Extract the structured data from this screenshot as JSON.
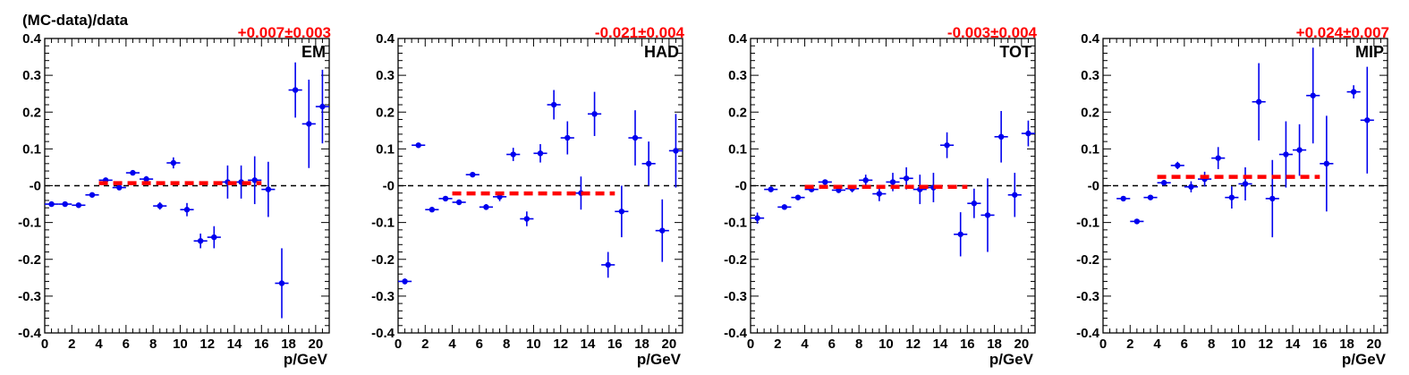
{
  "figure": {
    "ylabel": "(MC-data)/data",
    "xlabel": "p/GeV",
    "fit_color": "#ff0000",
    "point_color": "#0000ee"
  },
  "chart_data": [
    {
      "type": "scatter",
      "panel_label": "EM",
      "fit_text": "+0.007±0.003",
      "fit_value": 0.007,
      "fit_range": [
        4,
        16
      ],
      "xlabel": "p/GeV",
      "ylabel": "(MC-data)/data",
      "xlim": [
        0,
        21
      ],
      "ylim": [
        -0.4,
        0.4
      ],
      "x_ticks": [
        "0",
        "2",
        "4",
        "6",
        "8",
        "10",
        "12",
        "14",
        "16",
        "18",
        "20"
      ],
      "y_ticks": [
        "-0.4",
        "-0.3",
        "-0.2",
        "-0.1",
        "-0",
        "0.1",
        "0.2",
        "0.3",
        "0.4"
      ],
      "reference_line": 0,
      "grid": false,
      "points": [
        {
          "x": 0.5,
          "y": -0.05,
          "xerr": 0.5,
          "yerr": 0.004
        },
        {
          "x": 1.5,
          "y": -0.05,
          "xerr": 0.5,
          "yerr": 0.004
        },
        {
          "x": 2.5,
          "y": -0.053,
          "xerr": 0.5,
          "yerr": 0.004
        },
        {
          "x": 3.5,
          "y": -0.025,
          "xerr": 0.5,
          "yerr": 0.004
        },
        {
          "x": 4.5,
          "y": 0.015,
          "xerr": 0.5,
          "yerr": 0.005
        },
        {
          "x": 5.5,
          "y": -0.005,
          "xerr": 0.5,
          "yerr": 0.006
        },
        {
          "x": 6.5,
          "y": 0.035,
          "xerr": 0.5,
          "yerr": 0.006
        },
        {
          "x": 7.5,
          "y": 0.018,
          "xerr": 0.5,
          "yerr": 0.008
        },
        {
          "x": 8.5,
          "y": -0.055,
          "xerr": 0.5,
          "yerr": 0.01
        },
        {
          "x": 9.5,
          "y": 0.062,
          "xerr": 0.5,
          "yerr": 0.015
        },
        {
          "x": 10.5,
          "y": -0.065,
          "xerr": 0.5,
          "yerr": 0.018
        },
        {
          "x": 11.5,
          "y": -0.15,
          "xerr": 0.5,
          "yerr": 0.02
        },
        {
          "x": 12.5,
          "y": -0.14,
          "xerr": 0.5,
          "yerr": 0.03
        },
        {
          "x": 13.5,
          "y": 0.01,
          "xerr": 0.5,
          "yerr": 0.045
        },
        {
          "x": 14.5,
          "y": 0.01,
          "xerr": 0.5,
          "yerr": 0.045
        },
        {
          "x": 15.5,
          "y": 0.015,
          "xerr": 0.5,
          "yerr": 0.065
        },
        {
          "x": 16.5,
          "y": -0.01,
          "xerr": 0.5,
          "yerr": 0.075
        },
        {
          "x": 17.5,
          "y": -0.265,
          "xerr": 0.5,
          "yerr": 0.095
        },
        {
          "x": 18.5,
          "y": 0.26,
          "xerr": 0.5,
          "yerr": 0.075
        },
        {
          "x": 19.5,
          "y": 0.168,
          "xerr": 0.5,
          "yerr": 0.12
        },
        {
          "x": 20.5,
          "y": 0.215,
          "xerr": 0.5,
          "yerr": 0.1
        }
      ]
    },
    {
      "type": "scatter",
      "panel_label": "HAD",
      "fit_text": "-0.021±0.004",
      "fit_value": -0.021,
      "fit_range": [
        4,
        16
      ],
      "xlabel": "p/GeV",
      "ylabel": "",
      "xlim": [
        0,
        21
      ],
      "ylim": [
        -0.4,
        0.4
      ],
      "x_ticks": [
        "0",
        "2",
        "4",
        "6",
        "8",
        "10",
        "12",
        "14",
        "16",
        "18",
        "20"
      ],
      "y_ticks": [
        "-0.4",
        "-0.3",
        "-0.2",
        "-0.1",
        "-0",
        "0.1",
        "0.2",
        "0.3",
        "0.4"
      ],
      "reference_line": 0,
      "grid": false,
      "points": [
        {
          "x": 0.5,
          "y": -0.26,
          "xerr": 0.5,
          "yerr": 0.008
        },
        {
          "x": 1.5,
          "y": 0.11,
          "xerr": 0.5,
          "yerr": 0.004
        },
        {
          "x": 2.5,
          "y": -0.065,
          "xerr": 0.5,
          "yerr": 0.004
        },
        {
          "x": 3.5,
          "y": -0.035,
          "xerr": 0.5,
          "yerr": 0.004
        },
        {
          "x": 4.5,
          "y": -0.045,
          "xerr": 0.5,
          "yerr": 0.005
        },
        {
          "x": 5.5,
          "y": 0.03,
          "xerr": 0.5,
          "yerr": 0.006
        },
        {
          "x": 6.5,
          "y": -0.058,
          "xerr": 0.5,
          "yerr": 0.008
        },
        {
          "x": 7.5,
          "y": -0.03,
          "xerr": 0.5,
          "yerr": 0.012
        },
        {
          "x": 8.5,
          "y": 0.085,
          "xerr": 0.5,
          "yerr": 0.018
        },
        {
          "x": 9.5,
          "y": -0.09,
          "xerr": 0.5,
          "yerr": 0.02
        },
        {
          "x": 10.5,
          "y": 0.088,
          "xerr": 0.5,
          "yerr": 0.025
        },
        {
          "x": 11.5,
          "y": 0.22,
          "xerr": 0.5,
          "yerr": 0.04
        },
        {
          "x": 12.5,
          "y": 0.13,
          "xerr": 0.5,
          "yerr": 0.045
        },
        {
          "x": 13.5,
          "y": -0.02,
          "xerr": 0.5,
          "yerr": 0.045
        },
        {
          "x": 14.5,
          "y": 0.195,
          "xerr": 0.5,
          "yerr": 0.06
        },
        {
          "x": 15.5,
          "y": -0.215,
          "xerr": 0.5,
          "yerr": 0.035
        },
        {
          "x": 16.5,
          "y": -0.07,
          "xerr": 0.5,
          "yerr": 0.07
        },
        {
          "x": 17.5,
          "y": 0.13,
          "xerr": 0.5,
          "yerr": 0.075
        },
        {
          "x": 18.5,
          "y": 0.06,
          "xerr": 0.5,
          "yerr": 0.06
        },
        {
          "x": 19.5,
          "y": -0.122,
          "xerr": 0.5,
          "yerr": 0.085
        },
        {
          "x": 20.5,
          "y": 0.095,
          "xerr": 0.5,
          "yerr": 0.1
        }
      ]
    },
    {
      "type": "scatter",
      "panel_label": "TOT",
      "fit_text": "-0.003±0.004",
      "fit_value": -0.003,
      "fit_range": [
        4,
        16
      ],
      "xlabel": "p/GeV",
      "ylabel": "",
      "xlim": [
        0,
        21
      ],
      "ylim": [
        -0.4,
        0.4
      ],
      "x_ticks": [
        "0",
        "2",
        "4",
        "6",
        "8",
        "10",
        "12",
        "14",
        "16",
        "18",
        "20"
      ],
      "y_ticks": [
        "-0.4",
        "-0.3",
        "-0.2",
        "-0.1",
        "-0",
        "0.1",
        "0.2",
        "0.3",
        "0.4"
      ],
      "reference_line": 0,
      "grid": false,
      "points": [
        {
          "x": 0.5,
          "y": -0.088,
          "xerr": 0.5,
          "yerr": 0.015
        },
        {
          "x": 1.5,
          "y": -0.01,
          "xerr": 0.5,
          "yerr": 0.006
        },
        {
          "x": 2.5,
          "y": -0.058,
          "xerr": 0.5,
          "yerr": 0.004
        },
        {
          "x": 3.5,
          "y": -0.032,
          "xerr": 0.5,
          "yerr": 0.004
        },
        {
          "x": 4.5,
          "y": -0.01,
          "xerr": 0.5,
          "yerr": 0.005
        },
        {
          "x": 5.5,
          "y": 0.01,
          "xerr": 0.5,
          "yerr": 0.006
        },
        {
          "x": 6.5,
          "y": -0.012,
          "xerr": 0.5,
          "yerr": 0.008
        },
        {
          "x": 7.5,
          "y": -0.008,
          "xerr": 0.5,
          "yerr": 0.01
        },
        {
          "x": 8.5,
          "y": 0.015,
          "xerr": 0.5,
          "yerr": 0.015
        },
        {
          "x": 9.5,
          "y": -0.022,
          "xerr": 0.5,
          "yerr": 0.02
        },
        {
          "x": 10.5,
          "y": 0.01,
          "xerr": 0.5,
          "yerr": 0.025
        },
        {
          "x": 11.5,
          "y": 0.02,
          "xerr": 0.5,
          "yerr": 0.03
        },
        {
          "x": 12.5,
          "y": -0.01,
          "xerr": 0.5,
          "yerr": 0.04
        },
        {
          "x": 13.5,
          "y": -0.005,
          "xerr": 0.5,
          "yerr": 0.04
        },
        {
          "x": 14.5,
          "y": 0.11,
          "xerr": 0.5,
          "yerr": 0.035
        },
        {
          "x": 15.5,
          "y": -0.132,
          "xerr": 0.5,
          "yerr": 0.06
        },
        {
          "x": 16.5,
          "y": -0.048,
          "xerr": 0.5,
          "yerr": 0.04
        },
        {
          "x": 17.5,
          "y": -0.08,
          "xerr": 0.5,
          "yerr": 0.1
        },
        {
          "x": 18.5,
          "y": 0.133,
          "xerr": 0.5,
          "yerr": 0.07
        },
        {
          "x": 19.5,
          "y": -0.025,
          "xerr": 0.5,
          "yerr": 0.06
        },
        {
          "x": 20.5,
          "y": 0.142,
          "xerr": 0.5,
          "yerr": 0.035
        }
      ]
    },
    {
      "type": "scatter",
      "panel_label": "MIP",
      "fit_text": "+0.024±0.007",
      "fit_value": 0.024,
      "fit_range": [
        4,
        16
      ],
      "xlabel": "p/GeV",
      "ylabel": "",
      "xlim": [
        0,
        21
      ],
      "ylim": [
        -0.4,
        0.4
      ],
      "x_ticks": [
        "0",
        "2",
        "4",
        "6",
        "8",
        "10",
        "12",
        "14",
        "16",
        "18",
        "20"
      ],
      "y_ticks": [
        "-0.4",
        "-0.3",
        "-0.2",
        "-0.1",
        "-0",
        "0.1",
        "0.2",
        "0.3",
        "0.4"
      ],
      "reference_line": 0,
      "grid": false,
      "points": [
        {
          "x": 1.5,
          "y": -0.035,
          "xerr": 0.5,
          "yerr": 0.004
        },
        {
          "x": 2.5,
          "y": -0.097,
          "xerr": 0.5,
          "yerr": 0.005
        },
        {
          "x": 3.5,
          "y": -0.032,
          "xerr": 0.5,
          "yerr": 0.004
        },
        {
          "x": 4.5,
          "y": 0.008,
          "xerr": 0.5,
          "yerr": 0.006
        },
        {
          "x": 5.5,
          "y": 0.055,
          "xerr": 0.5,
          "yerr": 0.01
        },
        {
          "x": 6.5,
          "y": -0.003,
          "xerr": 0.5,
          "yerr": 0.015
        },
        {
          "x": 7.5,
          "y": 0.018,
          "xerr": 0.5,
          "yerr": 0.02
        },
        {
          "x": 8.5,
          "y": 0.075,
          "xerr": 0.5,
          "yerr": 0.03
        },
        {
          "x": 9.5,
          "y": -0.032,
          "xerr": 0.5,
          "yerr": 0.03
        },
        {
          "x": 10.5,
          "y": 0.005,
          "xerr": 0.5,
          "yerr": 0.045
        },
        {
          "x": 11.5,
          "y": 0.228,
          "xerr": 0.5,
          "yerr": 0.105
        },
        {
          "x": 12.5,
          "y": -0.035,
          "xerr": 0.5,
          "yerr": 0.105
        },
        {
          "x": 13.5,
          "y": 0.085,
          "xerr": 0.5,
          "yerr": 0.09
        },
        {
          "x": 14.5,
          "y": 0.097,
          "xerr": 0.5,
          "yerr": 0.07
        },
        {
          "x": 15.5,
          "y": 0.245,
          "xerr": 0.5,
          "yerr": 0.13
        },
        {
          "x": 16.5,
          "y": 0.06,
          "xerr": 0.5,
          "yerr": 0.13
        },
        {
          "x": 18.5,
          "y": 0.255,
          "xerr": 0.5,
          "yerr": 0.018
        },
        {
          "x": 19.5,
          "y": 0.178,
          "xerr": 0.5,
          "yerr": 0.145
        }
      ]
    }
  ]
}
